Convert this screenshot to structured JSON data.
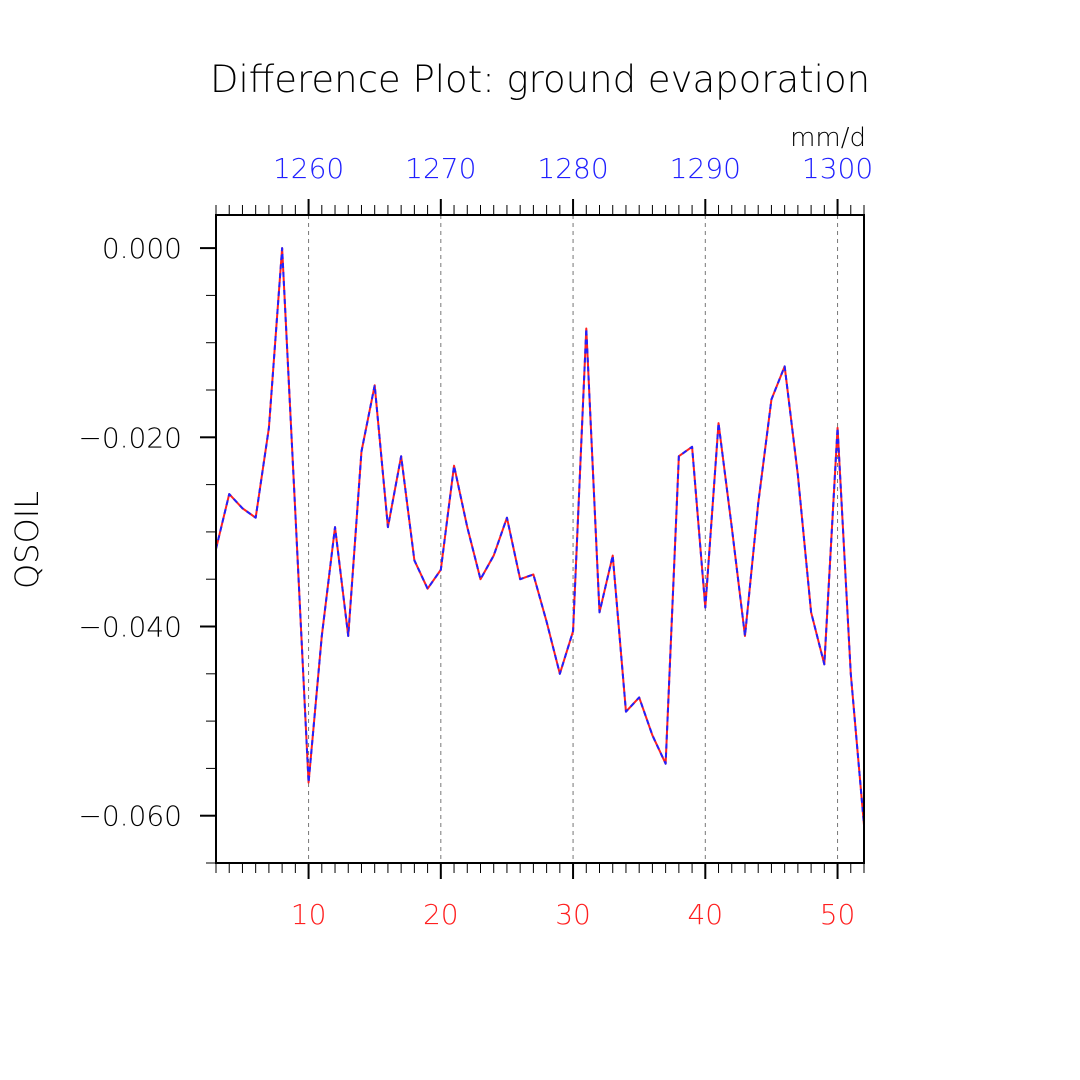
{
  "chart_data": {
    "type": "line",
    "title": "Difference Plot: ground evaporation",
    "ylabel": "QSOIL",
    "units": "mm/d",
    "xlim": [
      3,
      52
    ],
    "ylim": [
      -0.065,
      0.0035
    ],
    "grid": "vertical dashed at x=10,20,30,40,50",
    "x_ticks": [
      {
        "value": 10,
        "label": "10"
      },
      {
        "value": 20,
        "label": "20"
      },
      {
        "value": 30,
        "label": "30"
      },
      {
        "value": 40,
        "label": "40"
      },
      {
        "value": 50,
        "label": "50"
      }
    ],
    "x2_ticks": [
      {
        "value": 1260,
        "label": "1260"
      },
      {
        "value": 1270,
        "label": "1270"
      },
      {
        "value": 1280,
        "label": "1280"
      },
      {
        "value": 1290,
        "label": "1290"
      },
      {
        "value": 1300,
        "label": "1300"
      }
    ],
    "x2_offset": 1250,
    "y_ticks": [
      {
        "value": 0.0,
        "label": "0.000"
      },
      {
        "value": -0.02,
        "label": "−0.020"
      },
      {
        "value": -0.04,
        "label": "−0.040"
      },
      {
        "value": -0.06,
        "label": "−0.060"
      }
    ],
    "x": [
      3,
      4,
      5,
      6,
      7,
      8,
      9,
      10,
      11,
      12,
      13,
      14,
      15,
      16,
      17,
      18,
      19,
      20,
      21,
      22,
      23,
      24,
      25,
      26,
      27,
      28,
      29,
      30,
      31,
      32,
      33,
      34,
      35,
      36,
      37,
      38,
      39,
      40,
      41,
      42,
      43,
      44,
      45,
      46,
      47,
      48,
      49,
      50,
      51,
      52
    ],
    "series": [
      {
        "color": "#ff2020",
        "style": "solid",
        "values": [
          -0.0318,
          -0.026,
          -0.0275,
          -0.0285,
          -0.019,
          0.0,
          -0.028,
          -0.0565,
          -0.041,
          -0.0295,
          -0.041,
          -0.0215,
          -0.0145,
          -0.0295,
          -0.022,
          -0.033,
          -0.036,
          -0.034,
          -0.023,
          -0.0295,
          -0.035,
          -0.0325,
          -0.0285,
          -0.035,
          -0.0345,
          -0.0395,
          -0.045,
          -0.0405,
          -0.0085,
          -0.0385,
          -0.0325,
          -0.049,
          -0.0475,
          -0.0515,
          -0.0545,
          -0.022,
          -0.021,
          -0.038,
          -0.0185,
          -0.0295,
          -0.041,
          -0.027,
          -0.016,
          -0.0125,
          -0.024,
          -0.0385,
          -0.044,
          -0.019,
          -0.045,
          -0.061
        ]
      },
      {
        "color": "#2020ff",
        "style": "dashed",
        "values": [
          -0.0318,
          -0.026,
          -0.0275,
          -0.0285,
          -0.019,
          0.0,
          -0.028,
          -0.0565,
          -0.041,
          -0.0295,
          -0.041,
          -0.0215,
          -0.0145,
          -0.0295,
          -0.022,
          -0.033,
          -0.036,
          -0.034,
          -0.023,
          -0.0295,
          -0.035,
          -0.0325,
          -0.0285,
          -0.035,
          -0.0345,
          -0.0395,
          -0.045,
          -0.0405,
          -0.0085,
          -0.0385,
          -0.0325,
          -0.049,
          -0.0475,
          -0.0515,
          -0.0545,
          -0.022,
          -0.021,
          -0.038,
          -0.0185,
          -0.0295,
          -0.041,
          -0.027,
          -0.016,
          -0.0125,
          -0.024,
          -0.0385,
          -0.044,
          -0.019,
          -0.045,
          -0.061
        ]
      }
    ]
  }
}
